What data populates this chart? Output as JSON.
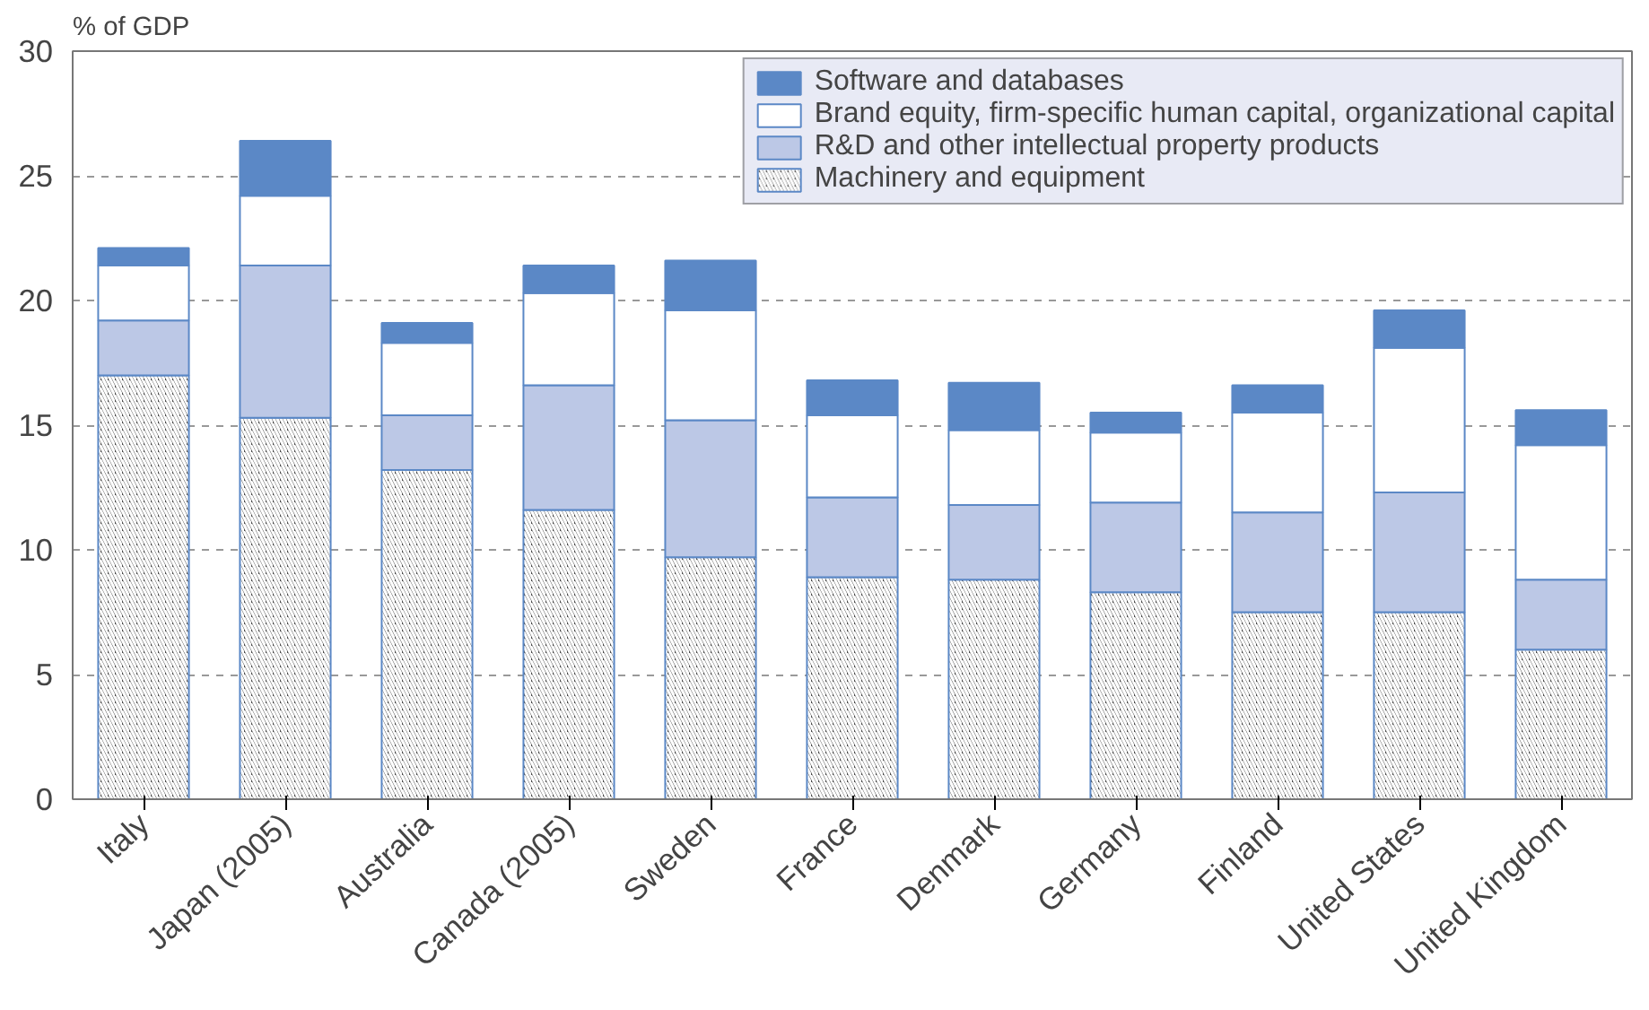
{
  "chart_data": {
    "type": "bar",
    "stacked": true,
    "ylabel": "% of GDP",
    "categories": [
      "Italy",
      "Japan (2005)",
      "Australia",
      "Canada (2005)",
      "Sweden",
      "France",
      "Denmark",
      "Germany",
      "Finland",
      "United States",
      "United Kingdom"
    ],
    "series": [
      {
        "name": "Machinery and equipment",
        "color": "#444444",
        "values": [
          17.0,
          15.3,
          13.2,
          11.6,
          9.7,
          8.9,
          8.8,
          8.3,
          7.5,
          7.5,
          6.0
        ]
      },
      {
        "name": "R&D and other intellectual property products",
        "color": "#bcc8e6",
        "values": [
          2.2,
          6.1,
          2.2,
          5.0,
          5.5,
          3.2,
          3.0,
          3.6,
          4.0,
          4.8,
          2.8
        ]
      },
      {
        "name": "Brand equity, firm-specific human capital, organizational capital",
        "color": "#ffffff",
        "values": [
          2.2,
          2.8,
          2.9,
          3.7,
          4.4,
          3.3,
          3.0,
          2.8,
          4.0,
          5.8,
          5.4
        ]
      },
      {
        "name": "Software and databases",
        "color": "#5b88c6",
        "values": [
          0.7,
          2.2,
          0.8,
          1.1,
          2.0,
          1.4,
          1.9,
          0.8,
          1.1,
          1.5,
          1.4
        ]
      }
    ],
    "ylim": [
      0,
      30
    ],
    "yticks": [
      0,
      5,
      10,
      15,
      20,
      25,
      30
    ],
    "grid": "y",
    "legend": "top right"
  }
}
